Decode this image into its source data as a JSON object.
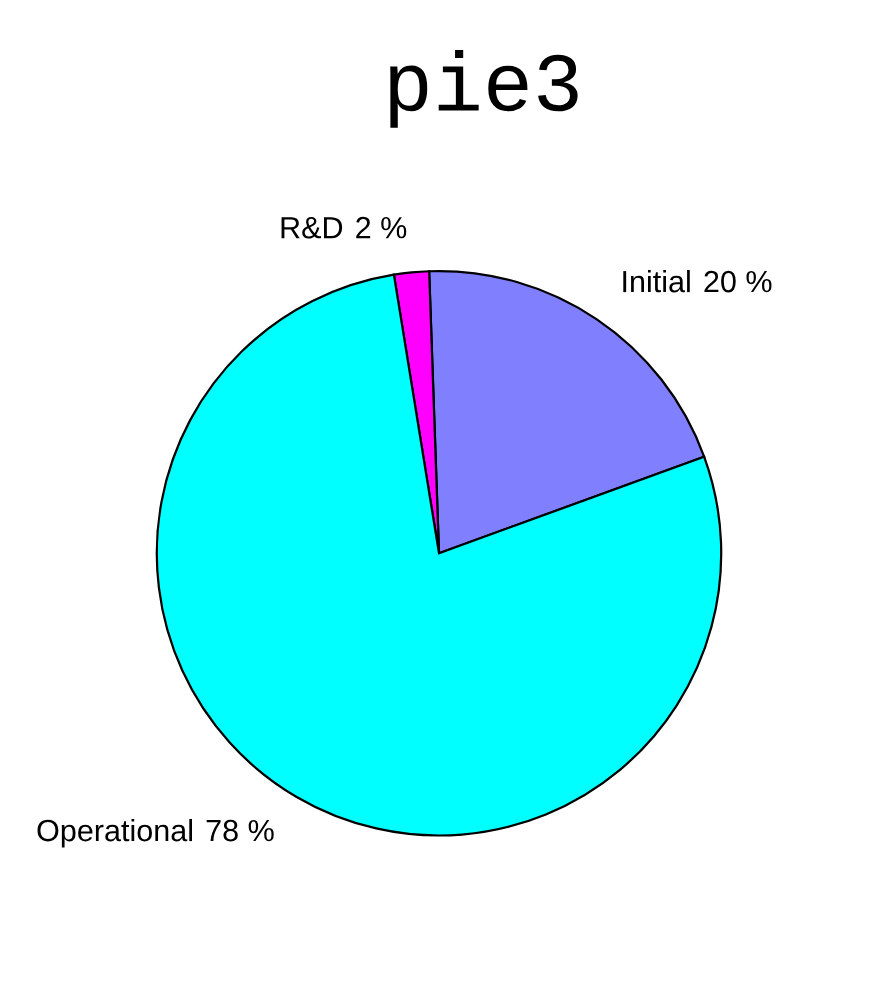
{
  "chart_data": {
    "type": "pie",
    "title": "pie3",
    "categories": [
      "Initial",
      "R&D",
      "Operational"
    ],
    "values": [
      20,
      2,
      78
    ],
    "colors": [
      "#8080ff",
      "#ff00ff",
      "#00ffff"
    ],
    "value_labels": [
      "20 %",
      "2 %",
      "78 %"
    ]
  }
}
